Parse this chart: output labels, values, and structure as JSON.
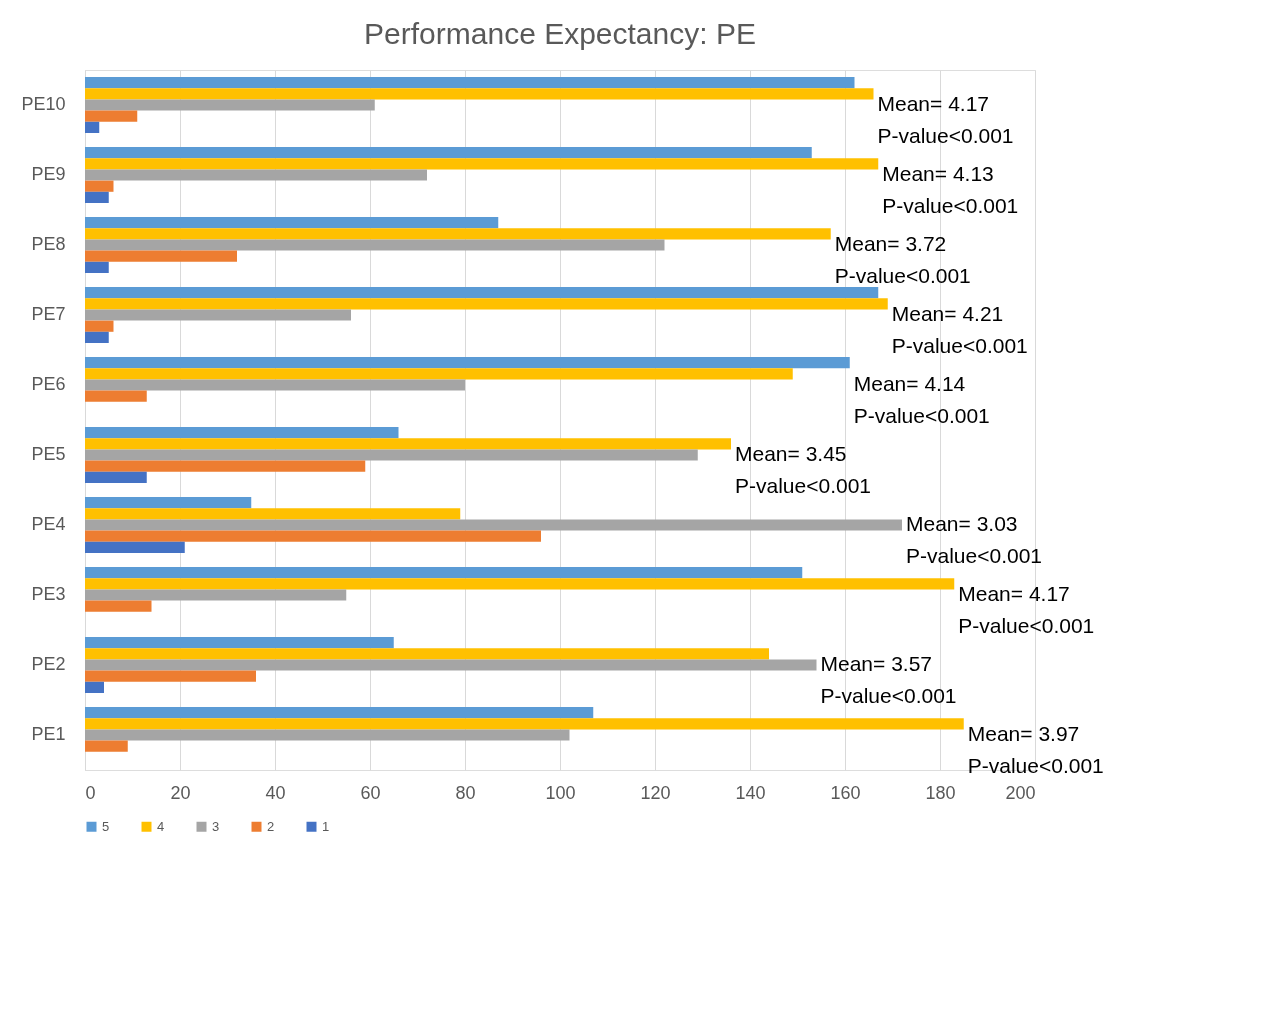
{
  "chart_data": {
    "type": "bar",
    "orientation": "horizontal",
    "title": "Performance Expectancy: PE",
    "categories": [
      "PE10",
      "PE9",
      "PE8",
      "PE7",
      "PE6",
      "PE5",
      "PE4",
      "PE3",
      "PE2",
      "PE1"
    ],
    "series": [
      {
        "name": "5",
        "color": "#5b9bd5",
        "values": [
          162,
          153,
          87,
          167,
          161,
          66,
          35,
          151,
          65,
          107
        ]
      },
      {
        "name": "4",
        "color": "#ffc000",
        "values": [
          166,
          167,
          157,
          169,
          149,
          136,
          79,
          183,
          144,
          185
        ]
      },
      {
        "name": "3",
        "color": "#a5a5a5",
        "values": [
          61,
          72,
          122,
          56,
          80,
          129,
          172,
          55,
          154,
          102
        ]
      },
      {
        "name": "2",
        "color": "#ed7d31",
        "values": [
          11,
          6,
          32,
          6,
          13,
          59,
          96,
          14,
          36,
          9
        ]
      },
      {
        "name": "1",
        "color": "#4472c4",
        "values": [
          3,
          5,
          5,
          5,
          0,
          13,
          21,
          0,
          4,
          0
        ]
      }
    ],
    "xlim": [
      0,
      200
    ],
    "xticks": [
      0,
      20,
      40,
      60,
      80,
      100,
      120,
      140,
      160,
      180,
      200
    ],
    "grid": "x",
    "legend": "bottom",
    "annotations": [
      "Mean= 4.17\nP-value<0.001",
      "Mean= 4.13\nP-value<0.001",
      "Mean= 3.72\nP-value<0.001",
      "Mean= 4.21\nP-value<0.001",
      "Mean= 4.14\nP-value<0.001",
      "Mean= 3.45\nP-value<0.001",
      "Mean= 3.03\nP-value<0.001",
      "Mean= 4.17\nP-value<0.001",
      "Mean= 3.57\nP-value<0.001",
      "Mean= 3.97\nP-value<0.001"
    ]
  }
}
